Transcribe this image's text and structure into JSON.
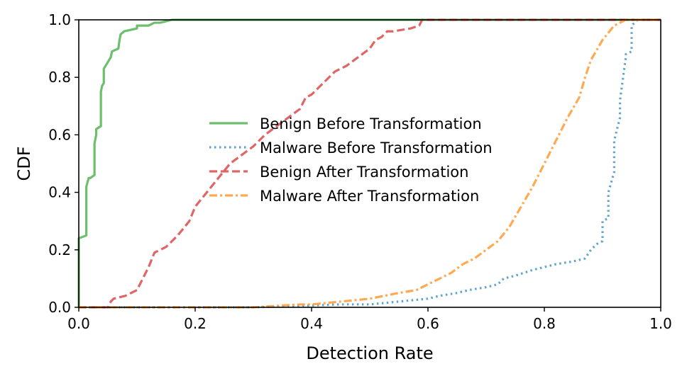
{
  "chart_data": {
    "type": "line",
    "title": "",
    "xlabel": "Detection Rate",
    "ylabel": "CDF",
    "xlim": [
      0.0,
      1.0
    ],
    "ylim": [
      0.0,
      1.0
    ],
    "xticks": [
      0.0,
      0.2,
      0.4,
      0.6,
      0.8,
      1.0
    ],
    "yticks": [
      0.0,
      0.2,
      0.4,
      0.6,
      0.8,
      1.0
    ],
    "xtick_labels": [
      "0.0",
      "0.2",
      "0.4",
      "0.6",
      "0.8",
      "1.0"
    ],
    "ytick_labels": [
      "0.0",
      "0.2",
      "0.4",
      "0.6",
      "0.8",
      "1.0"
    ],
    "grid": false,
    "legend_position": "center-right",
    "series": [
      {
        "name": "Benign Before Transformation",
        "color": "#5cb85c",
        "dash": "solid",
        "x": [
          0.0,
          0.0,
          0.013,
          0.013,
          0.017,
          0.02,
          0.027,
          0.027,
          0.03,
          0.03,
          0.038,
          0.038,
          0.04,
          0.043,
          0.043,
          0.055,
          0.057,
          0.068,
          0.07,
          0.072,
          0.078,
          0.1,
          0.1,
          0.12,
          0.13,
          0.14,
          0.16,
          0.18,
          0.2,
          0.3,
          0.5,
          1.0
        ],
        "y": [
          0.0,
          0.24,
          0.25,
          0.42,
          0.45,
          0.45,
          0.46,
          0.57,
          0.6,
          0.62,
          0.63,
          0.75,
          0.77,
          0.78,
          0.83,
          0.87,
          0.89,
          0.9,
          0.93,
          0.95,
          0.96,
          0.97,
          0.98,
          0.98,
          0.99,
          0.99,
          1.0,
          1.0,
          1.0,
          1.0,
          1.0,
          1.0
        ]
      },
      {
        "name": "Malware Before Transformation",
        "color": "#4d9ac7",
        "dash": "dotted",
        "x": [
          0.0,
          0.3,
          0.45,
          0.5,
          0.55,
          0.6,
          0.62,
          0.65,
          0.67,
          0.7,
          0.72,
          0.73,
          0.75,
          0.78,
          0.8,
          0.82,
          0.85,
          0.87,
          0.88,
          0.89,
          0.9,
          0.9,
          0.91,
          0.91,
          0.92,
          0.92,
          0.93,
          0.93,
          0.94,
          0.94,
          0.95,
          0.95,
          0.96,
          0.97,
          1.0
        ],
        "y": [
          0.0,
          0.0,
          0.01,
          0.01,
          0.02,
          0.03,
          0.04,
          0.05,
          0.06,
          0.07,
          0.08,
          0.1,
          0.11,
          0.13,
          0.14,
          0.15,
          0.16,
          0.17,
          0.2,
          0.22,
          0.23,
          0.3,
          0.31,
          0.4,
          0.47,
          0.58,
          0.66,
          0.72,
          0.87,
          0.88,
          0.89,
          0.98,
          1.0,
          1.0,
          1.0
        ]
      },
      {
        "name": "Benign After Transformation",
        "color": "#dd5555",
        "dash": "dashed",
        "x": [
          0.0,
          0.05,
          0.055,
          0.06,
          0.08,
          0.1,
          0.11,
          0.12,
          0.13,
          0.14,
          0.15,
          0.17,
          0.19,
          0.2,
          0.22,
          0.24,
          0.26,
          0.28,
          0.3,
          0.32,
          0.34,
          0.36,
          0.38,
          0.39,
          0.4,
          0.42,
          0.44,
          0.46,
          0.48,
          0.5,
          0.51,
          0.52,
          0.53,
          0.54,
          0.57,
          0.585,
          0.59,
          0.6,
          1.0
        ],
        "y": [
          0.0,
          0.0,
          0.02,
          0.03,
          0.04,
          0.06,
          0.1,
          0.14,
          0.19,
          0.2,
          0.21,
          0.25,
          0.3,
          0.35,
          0.4,
          0.45,
          0.5,
          0.53,
          0.56,
          0.6,
          0.63,
          0.66,
          0.69,
          0.73,
          0.74,
          0.78,
          0.82,
          0.84,
          0.87,
          0.9,
          0.93,
          0.94,
          0.96,
          0.96,
          0.97,
          0.98,
          1.0,
          1.0,
          1.0
        ]
      },
      {
        "name": "Malware After Transformation",
        "color": "#ffa040",
        "dash": "dashdot",
        "x": [
          0.0,
          0.2,
          0.3,
          0.38,
          0.4,
          0.5,
          0.55,
          0.58,
          0.6,
          0.62,
          0.64,
          0.66,
          0.68,
          0.7,
          0.72,
          0.74,
          0.76,
          0.78,
          0.8,
          0.82,
          0.84,
          0.86,
          0.87,
          0.88,
          0.9,
          0.92,
          0.94,
          0.95,
          1.0
        ],
        "y": [
          0.0,
          0.0,
          0.0,
          0.01,
          0.01,
          0.03,
          0.05,
          0.06,
          0.08,
          0.1,
          0.12,
          0.15,
          0.17,
          0.2,
          0.23,
          0.28,
          0.35,
          0.42,
          0.5,
          0.58,
          0.66,
          0.73,
          0.8,
          0.86,
          0.93,
          0.98,
          1.0,
          1.0,
          1.0
        ]
      }
    ]
  }
}
